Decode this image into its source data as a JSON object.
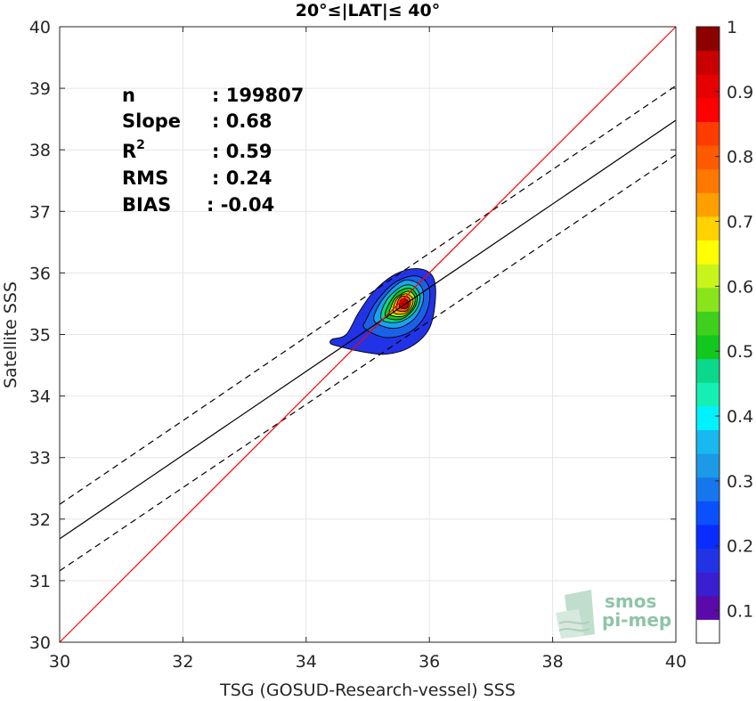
{
  "chart_data": {
    "type": "scatter",
    "subtype": "density-contour",
    "title": "20°≤|LAT|≤ 40°",
    "xlabel": "TSG (GOSUD-Research-vessel) SSS",
    "ylabel": "Satellite SSS",
    "xlim": [
      30,
      40
    ],
    "ylim": [
      30,
      40
    ],
    "xticks": [
      "30",
      "32",
      "34",
      "36",
      "38",
      "40"
    ],
    "yticks": [
      "30",
      "31",
      "32",
      "33",
      "34",
      "35",
      "36",
      "37",
      "38",
      "39",
      "40"
    ],
    "grid": true,
    "stats": [
      {
        "label": "n",
        "value": ": 199807"
      },
      {
        "label": "Slope",
        "value": ": 0.68"
      },
      {
        "label": "R",
        "sup": "2",
        "value": ": 0.59"
      },
      {
        "label": "RMS",
        "value": ": 0.24"
      },
      {
        "label": "BIAS",
        "value": ": -0.04"
      }
    ],
    "lines": {
      "identity": {
        "color": "#ff0000",
        "from": [
          30,
          30
        ],
        "to": [
          40,
          40
        ]
      },
      "fit": {
        "color": "#000000",
        "style": "solid",
        "from": [
          30,
          31.68
        ],
        "to": [
          40,
          38.48
        ]
      },
      "fit_upper": {
        "color": "#000000",
        "style": "dashed",
        "from": [
          30,
          32.24
        ],
        "to": [
          40,
          39.04
        ]
      },
      "fit_lower": {
        "color": "#000000",
        "style": "dashed",
        "from": [
          30,
          31.16
        ],
        "to": [
          40,
          37.92
        ]
      }
    },
    "density_peak": {
      "x": 35.6,
      "y": 35.5
    },
    "contours": [
      {
        "level": 0.05,
        "color": "#2233e6",
        "points": [
          [
            34.4,
            34.85
          ],
          [
            34.55,
            34.8
          ],
          [
            34.9,
            34.72
          ],
          [
            35.3,
            34.68
          ],
          [
            35.7,
            34.8
          ],
          [
            36.0,
            35.1
          ],
          [
            36.1,
            35.6
          ],
          [
            36.05,
            35.95
          ],
          [
            35.8,
            36.07
          ],
          [
            35.45,
            35.98
          ],
          [
            35.1,
            35.7
          ],
          [
            34.85,
            35.35
          ],
          [
            34.65,
            35.0
          ],
          [
            34.42,
            34.92
          ]
        ]
      },
      {
        "level": 0.15,
        "color": "#1b61e8",
        "points": [
          [
            34.95,
            35.1
          ],
          [
            35.3,
            34.95
          ],
          [
            35.7,
            35.05
          ],
          [
            35.95,
            35.35
          ],
          [
            36.0,
            35.75
          ],
          [
            35.8,
            35.95
          ],
          [
            35.45,
            35.85
          ],
          [
            35.15,
            35.55
          ],
          [
            34.98,
            35.25
          ]
        ]
      },
      {
        "level": 0.3,
        "color": "#18a3f0",
        "points": [
          [
            35.12,
            35.2
          ],
          [
            35.45,
            35.1
          ],
          [
            35.75,
            35.25
          ],
          [
            35.9,
            35.55
          ],
          [
            35.85,
            35.8
          ],
          [
            35.6,
            35.88
          ],
          [
            35.35,
            35.7
          ],
          [
            35.15,
            35.42
          ]
        ]
      },
      {
        "level": 0.45,
        "color": "#0ad88a",
        "points": [
          [
            35.22,
            35.25
          ],
          [
            35.5,
            35.2
          ],
          [
            35.75,
            35.35
          ],
          [
            35.85,
            35.6
          ],
          [
            35.75,
            35.78
          ],
          [
            35.55,
            35.78
          ],
          [
            35.3,
            35.55
          ]
        ]
      },
      {
        "level": 0.55,
        "color": "#12c81e",
        "points": [
          [
            35.3,
            35.28
          ],
          [
            35.55,
            35.25
          ],
          [
            35.75,
            35.42
          ],
          [
            35.8,
            35.62
          ],
          [
            35.68,
            35.75
          ],
          [
            35.48,
            35.68
          ],
          [
            35.32,
            35.45
          ]
        ]
      },
      {
        "level": 0.65,
        "color": "#c8e414",
        "points": [
          [
            35.36,
            35.32
          ],
          [
            35.58,
            35.3
          ],
          [
            35.74,
            35.45
          ],
          [
            35.76,
            35.62
          ],
          [
            35.65,
            35.7
          ],
          [
            35.46,
            35.6
          ],
          [
            35.38,
            35.45
          ]
        ]
      },
      {
        "level": 0.75,
        "color": "#ffb000",
        "points": [
          [
            35.42,
            35.36
          ],
          [
            35.6,
            35.34
          ],
          [
            35.72,
            35.47
          ],
          [
            35.72,
            35.6
          ],
          [
            35.6,
            35.66
          ],
          [
            35.46,
            35.56
          ]
        ]
      },
      {
        "level": 0.85,
        "color": "#ff5a00",
        "points": [
          [
            35.47,
            35.4
          ],
          [
            35.62,
            35.38
          ],
          [
            35.69,
            35.5
          ],
          [
            35.66,
            35.6
          ],
          [
            35.55,
            35.62
          ],
          [
            35.48,
            35.52
          ]
        ]
      },
      {
        "level": 0.95,
        "color": "#c80000",
        "points": [
          [
            35.52,
            35.44
          ],
          [
            35.63,
            35.43
          ],
          [
            35.66,
            35.52
          ],
          [
            35.6,
            35.58
          ],
          [
            35.53,
            35.55
          ]
        ]
      }
    ],
    "colorbar": {
      "ticks": [
        "0.1",
        "0.2",
        "0.3",
        "0.4",
        "0.5",
        "0.6",
        "0.7",
        "0.8",
        "0.9",
        "1"
      ],
      "bands": [
        "#ffffff",
        "#5a0aa8",
        "#3a1fd0",
        "#2233e6",
        "#0a2cff",
        "#0a50ff",
        "#1677ec",
        "#1c9ae6",
        "#18b8f0",
        "#00f2ff",
        "#14f0b4",
        "#0ad88a",
        "#12c81e",
        "#3ed01c",
        "#8ae41c",
        "#c8f41c",
        "#ffff00",
        "#ffd200",
        "#ffa000",
        "#ff7800",
        "#ff5a00",
        "#ff3c00",
        "#ff0000",
        "#e60000",
        "#c80000",
        "#8c0000"
      ]
    },
    "watermark": [
      "smos",
      "pi-mep"
    ]
  }
}
